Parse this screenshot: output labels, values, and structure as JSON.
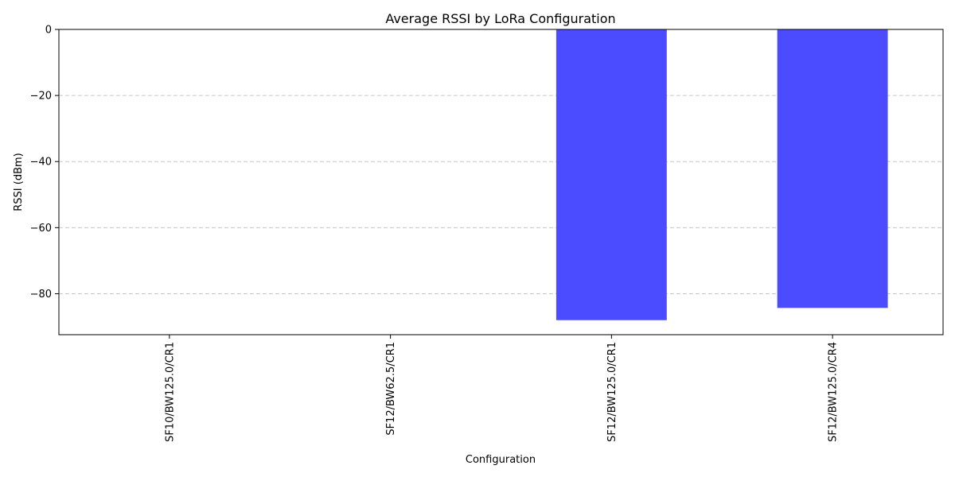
{
  "chart_data": {
    "type": "bar",
    "title": "Average RSSI by LoRa Configuration",
    "xlabel": "Configuration",
    "ylabel": "RSSI (dBm)",
    "categories": [
      "SF10/BW125.0/CR1",
      "SF12/BW62.5/CR1",
      "SF12/BW125.0/CR1",
      "SF12/BW125.0/CR4"
    ],
    "values": [
      null,
      null,
      -88,
      -84.3
    ],
    "ylim": [
      -92.4,
      0
    ],
    "yticks": [
      0,
      -20,
      -40,
      -60,
      -80
    ],
    "ytick_labels": [
      "0",
      "−20",
      "−40",
      "−60",
      "−80"
    ],
    "grid": "y-dashed",
    "bar_color": "#4b4bff"
  }
}
